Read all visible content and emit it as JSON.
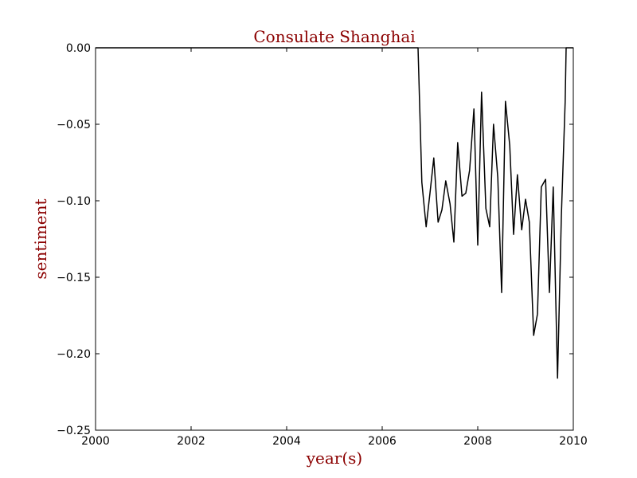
{
  "chart_data": {
    "type": "line",
    "title": "Consulate Shanghai",
    "xlabel": "year(s)",
    "ylabel": "sentiment",
    "xlim": [
      2000,
      2010
    ],
    "ylim": [
      -0.25,
      0.0
    ],
    "grid": false,
    "x_ticks": [
      {
        "value": 2000,
        "label": "2000"
      },
      {
        "value": 2002,
        "label": "2002"
      },
      {
        "value": 2004,
        "label": "2004"
      },
      {
        "value": 2006,
        "label": "2006"
      },
      {
        "value": 2008,
        "label": "2008"
      },
      {
        "value": 2010,
        "label": "2010"
      }
    ],
    "y_ticks": [
      {
        "value": 0.0,
        "label": "0.00"
      },
      {
        "value": -0.05,
        "label": "−0.05"
      },
      {
        "value": -0.1,
        "label": "−0.10"
      },
      {
        "value": -0.15,
        "label": "−0.15"
      },
      {
        "value": -0.2,
        "label": "−0.20"
      },
      {
        "value": -0.25,
        "label": "−0.25"
      }
    ],
    "series": [
      {
        "color": "#000000",
        "points": [
          [
            2000.0,
            0.0
          ],
          [
            2006.75,
            0.0
          ],
          [
            2006.83,
            -0.088
          ],
          [
            2006.92,
            -0.117
          ],
          [
            2007.0,
            -0.095
          ],
          [
            2007.08,
            -0.072
          ],
          [
            2007.17,
            -0.114
          ],
          [
            2007.25,
            -0.106
          ],
          [
            2007.33,
            -0.087
          ],
          [
            2007.42,
            -0.102
          ],
          [
            2007.5,
            -0.127
          ],
          [
            2007.58,
            -0.062
          ],
          [
            2007.67,
            -0.097
          ],
          [
            2007.75,
            -0.095
          ],
          [
            2007.83,
            -0.08
          ],
          [
            2007.92,
            -0.04
          ],
          [
            2008.0,
            -0.129
          ],
          [
            2008.08,
            -0.029
          ],
          [
            2008.17,
            -0.105
          ],
          [
            2008.25,
            -0.117
          ],
          [
            2008.33,
            -0.05
          ],
          [
            2008.42,
            -0.085
          ],
          [
            2008.5,
            -0.16
          ],
          [
            2008.58,
            -0.035
          ],
          [
            2008.67,
            -0.064
          ],
          [
            2008.75,
            -0.122
          ],
          [
            2008.83,
            -0.083
          ],
          [
            2008.92,
            -0.119
          ],
          [
            2009.0,
            -0.099
          ],
          [
            2009.08,
            -0.114
          ],
          [
            2009.17,
            -0.188
          ],
          [
            2009.25,
            -0.174
          ],
          [
            2009.33,
            -0.091
          ],
          [
            2009.42,
            -0.086
          ],
          [
            2009.5,
            -0.16
          ],
          [
            2009.58,
            -0.091
          ],
          [
            2009.67,
            -0.216
          ],
          [
            2009.75,
            -0.11
          ],
          [
            2009.83,
            -0.035
          ],
          [
            2009.85,
            0.0
          ],
          [
            2010.0,
            0.0
          ]
        ]
      }
    ]
  }
}
